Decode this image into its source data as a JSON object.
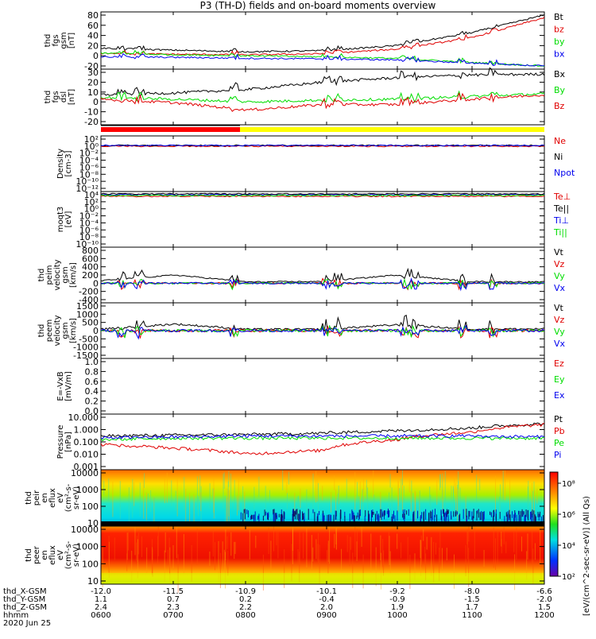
{
  "title": "P3 (TH-D) fields and on-board moments overview",
  "colors": {
    "black": "#000000",
    "red": "#e00000",
    "green": "#00dd00",
    "blue": "#0000ee",
    "yellow": "#ffff00",
    "brightred": "#ff0000"
  },
  "panels": [
    {
      "id": "fgs-gsm",
      "ylabel": [
        "thd",
        "fgs",
        "gsm",
        "[nT]"
      ],
      "ticks": [
        "80",
        "60",
        "40",
        "20",
        "0",
        "-20"
      ],
      "legend": [
        [
          "Bt",
          "black"
        ],
        [
          "bz",
          "red"
        ],
        [
          "by",
          "green"
        ],
        [
          "bx",
          "blue"
        ]
      ]
    },
    {
      "id": "fgs-dsl",
      "ylabel": [
        "thd",
        "fgs",
        "dsl",
        "[nT]"
      ],
      "ticks": [
        "30",
        "20",
        "10",
        "0",
        "-10",
        "-20"
      ],
      "legend": [
        [
          "Bx",
          "black"
        ],
        [
          "By",
          "green"
        ],
        [
          "Bz",
          "red"
        ]
      ]
    },
    {
      "id": "density",
      "ylabel": [
        "Density",
        "[cm-3]"
      ],
      "ticks": [
        "10²",
        "10⁰",
        "10⁻²",
        "10⁻⁴",
        "10⁻⁶",
        "10⁻⁸",
        "10⁻¹⁰",
        "10⁻¹²"
      ],
      "legend": [
        [
          "Ne",
          "red"
        ],
        [
          "Ni",
          "black"
        ],
        [
          "Npot",
          "blue"
        ]
      ]
    },
    {
      "id": "temperature",
      "ylabel": [
        "moqt3",
        "[eV]"
      ],
      "ticks": [
        "10⁴",
        "10²",
        "10⁰",
        "10⁻²",
        "10⁻⁴",
        "10⁻⁶",
        "10⁻⁸",
        "10⁻¹⁰"
      ],
      "legend": [
        [
          "Te⊥",
          "red"
        ],
        [
          "Te||",
          "black"
        ],
        [
          "Ti⊥",
          "blue"
        ],
        [
          "Ti||",
          "green"
        ]
      ]
    },
    {
      "id": "ion-velocity",
      "ylabel": [
        "thd",
        "peim",
        "velocity",
        "gsm",
        "[km/s]"
      ],
      "ticks": [
        "800",
        "600",
        "400",
        "200",
        "0",
        "-200",
        "-400"
      ],
      "legend": [
        [
          "Vt",
          "black"
        ],
        [
          "Vz",
          "red"
        ],
        [
          "Vy",
          "green"
        ],
        [
          "Vx",
          "blue"
        ]
      ]
    },
    {
      "id": "electron-velocity",
      "ylabel": [
        "thd",
        "peem",
        "velocity",
        "gsm",
        "[km/s]"
      ],
      "ticks": [
        "1500",
        "1000",
        "500",
        "0",
        "-500",
        "-1000",
        "-1500"
      ],
      "legend": [
        [
          "Vt",
          "black"
        ],
        [
          "Vz",
          "red"
        ],
        [
          "Vy",
          "green"
        ],
        [
          "Vx",
          "blue"
        ]
      ]
    },
    {
      "id": "efield",
      "ylabel": [
        "E=-VxB",
        "[mV/m]"
      ],
      "ticks": [
        "1.0",
        "0.8",
        "0.6",
        "0.4",
        "0.2",
        "0.0"
      ],
      "legend": [
        [
          "Ez",
          "red"
        ],
        [
          "Ey",
          "green"
        ],
        [
          "Ex",
          "blue"
        ]
      ]
    },
    {
      "id": "pressure",
      "ylabel": [
        "Pressure",
        "[nPa]"
      ],
      "ticks": [
        "10.000",
        "1.000",
        "0.100",
        "0.010",
        "0.001"
      ],
      "legend": [
        [
          "Pt",
          "black"
        ],
        [
          "Pb",
          "red"
        ],
        [
          "Pe",
          "green"
        ],
        [
          "Pi",
          "blue"
        ]
      ]
    },
    {
      "id": "ion-spectrogram",
      "ylabel": [
        "thd",
        "peir",
        "en",
        "eflux",
        "eV",
        "(cm²-s-",
        "sr-eV)"
      ],
      "ticks": [
        "10000",
        "1000",
        "100",
        "10"
      ]
    },
    {
      "id": "electron-spectrogram",
      "ylabel": [
        "thd",
        "peer",
        "en",
        "eflux",
        "eV",
        "(cm²-s-",
        "sr-eV)"
      ],
      "ticks": [
        "10000",
        "1000",
        "100",
        "10"
      ]
    }
  ],
  "colorbar": {
    "ticks": [
      "10⁸",
      "10⁶",
      "10⁴",
      "10²"
    ],
    "label": "[eV/(cm^2-sec-sr-eV)] (All Qs)",
    "label_pieces": [
      "[eV/(cm",
      "²",
      "-sec-sr-eV)] (All Qs)"
    ]
  },
  "xaxis": {
    "row_labels": [
      "thd_X-GSM",
      "thd_Y-GSM",
      "thd_Z-GSM",
      "hhmm",
      "2020 Jun 25"
    ],
    "columns": [
      [
        "-12.0",
        "1.1",
        "2.4",
        "0600"
      ],
      [
        "-11.5",
        "0.7",
        "2.3",
        "0700"
      ],
      [
        "-10.9",
        "0.2",
        "2.2",
        "0800"
      ],
      [
        "-10.1",
        "-0.4",
        "2.0",
        "0900"
      ],
      [
        "-9.2",
        "-0.9",
        "1.9",
        "1000"
      ],
      [
        "-8.0",
        "-1.5",
        "1.7",
        "1100"
      ],
      [
        "-6.6",
        "-2.0",
        "1.5",
        "1200"
      ]
    ]
  },
  "chart_data": [
    {
      "type": "line",
      "title": "P3 (TH-D) fields and on-board moments overview",
      "ylabel": "thd fgs gsm [nT]",
      "ylim": [
        -20,
        80
      ],
      "x": [
        "0600",
        "0700",
        "0800",
        "0900",
        "1000",
        "1100",
        "1200"
      ],
      "series": [
        {
          "name": "Bt",
          "values": [
            15,
            11,
            8,
            10,
            20,
            45,
            80
          ]
        },
        {
          "name": "bz",
          "values": [
            5,
            3,
            2,
            4,
            13,
            35,
            75
          ]
        },
        {
          "name": "by",
          "values": [
            5,
            2,
            0,
            -2,
            -5,
            -13,
            -20
          ]
        },
        {
          "name": "bx",
          "values": [
            -2,
            -3,
            -5,
            -6,
            -8,
            -14,
            -20
          ]
        }
      ]
    },
    {
      "type": "line",
      "ylabel": "thd fgs dsl [nT]",
      "ylim": [
        -25,
        30
      ],
      "x": [
        "0600",
        "0700",
        "0800",
        "0900",
        "1000",
        "1100",
        "1200"
      ],
      "series": [
        {
          "name": "Bx",
          "values": [
            5,
            7,
            11,
            19,
            24,
            27,
            28
          ]
        },
        {
          "name": "By",
          "values": [
            2,
            0,
            -3,
            -1,
            0,
            3,
            6
          ]
        },
        {
          "name": "Bz",
          "values": [
            0,
            -4,
            -12,
            -6,
            -6,
            0,
            5
          ]
        }
      ]
    },
    {
      "type": "line",
      "ylabel": "Density [cm-3]",
      "x": [
        "0600",
        "0700",
        "0800",
        "0900",
        "1000",
        "1100",
        "1200"
      ],
      "series": [
        {
          "name": "Ne",
          "values": [
            0.1,
            0.1,
            0.1,
            0.1,
            0.1,
            0.1,
            0.1
          ]
        },
        {
          "name": "Ni",
          "values": [
            0.1,
            0.1,
            0.1,
            0.1,
            0.1,
            0.1,
            0.1
          ]
        },
        {
          "name": "Npot",
          "values": [
            0.1,
            0.1,
            0.1,
            0.1,
            0.1,
            0.1,
            0.1
          ]
        }
      ]
    },
    {
      "type": "line",
      "ylabel": "moqt3 [eV]",
      "x": [
        "0600",
        "0700",
        "0800",
        "0900",
        "1000",
        "1100",
        "1200"
      ],
      "series": [
        {
          "name": "Te⊥",
          "values": [
            2000,
            2000,
            2000,
            2000,
            2000,
            2000,
            2000
          ]
        },
        {
          "name": "Ti⊥",
          "values": [
            5000,
            5000,
            5000,
            5000,
            5000,
            5000,
            5000
          ]
        }
      ]
    },
    {
      "type": "line",
      "ylabel": "thd peim velocity gsm [km/s]",
      "ylim": [
        -400,
        800
      ],
      "x": [
        "0600",
        "0700",
        "0800",
        "0900",
        "1000",
        "1100",
        "1200"
      ],
      "series": [
        {
          "name": "Vt",
          "values": [
            60,
            200,
            30,
            40,
            200,
            40,
            30
          ]
        }
      ]
    },
    {
      "type": "line",
      "ylabel": "thd peem velocity gsm [km/s]",
      "ylim": [
        -1500,
        1500
      ],
      "x": [
        "0600",
        "0700",
        "0800",
        "0900",
        "1000",
        "1100",
        "1200"
      ],
      "series": [
        {
          "name": "Vt",
          "values": [
            80,
            400,
            80,
            80,
            350,
            100,
            100
          ]
        }
      ]
    },
    {
      "type": "line",
      "ylabel": "E=-VxB [mV/m]",
      "ylim": [
        0,
        1
      ],
      "x": [
        "0600",
        "0700",
        "0800",
        "0900",
        "1000",
        "1100",
        "1200"
      ],
      "series": []
    },
    {
      "type": "line",
      "ylabel": "Pressure [nPa]",
      "ylim": [
        0.001,
        10
      ],
      "x": [
        "0600",
        "0700",
        "0800",
        "0900",
        "1000",
        "1100",
        "1200"
      ],
      "series": [
        {
          "name": "Pt",
          "values": [
            0.3,
            0.35,
            0.4,
            0.5,
            0.8,
            1.3,
            3
          ]
        },
        {
          "name": "Pb",
          "values": [
            0.06,
            0.03,
            0.01,
            0.02,
            0.15,
            0.6,
            2.5
          ]
        },
        {
          "name": "Pe",
          "values": [
            0.15,
            0.2,
            0.2,
            0.2,
            0.2,
            0.2,
            0.2
          ]
        },
        {
          "name": "Pi",
          "values": [
            0.2,
            0.25,
            0.3,
            0.3,
            0.3,
            0.3,
            0.25
          ]
        }
      ]
    },
    {
      "type": "heatmap",
      "ylabel": "thd peir en eflux eV/(cm²-s-sr-eV)",
      "ylim": [
        5,
        25000
      ],
      "x": [
        "0600",
        "0700",
        "0800",
        "0900",
        "1000",
        "1100",
        "1200"
      ]
    },
    {
      "type": "heatmap",
      "ylabel": "thd peer en eflux eV/(cm²-s-sr-eV)",
      "ylim": [
        5,
        25000
      ],
      "x": [
        "0600",
        "0700",
        "0800",
        "0900",
        "1000",
        "1100",
        "1200"
      ]
    }
  ]
}
